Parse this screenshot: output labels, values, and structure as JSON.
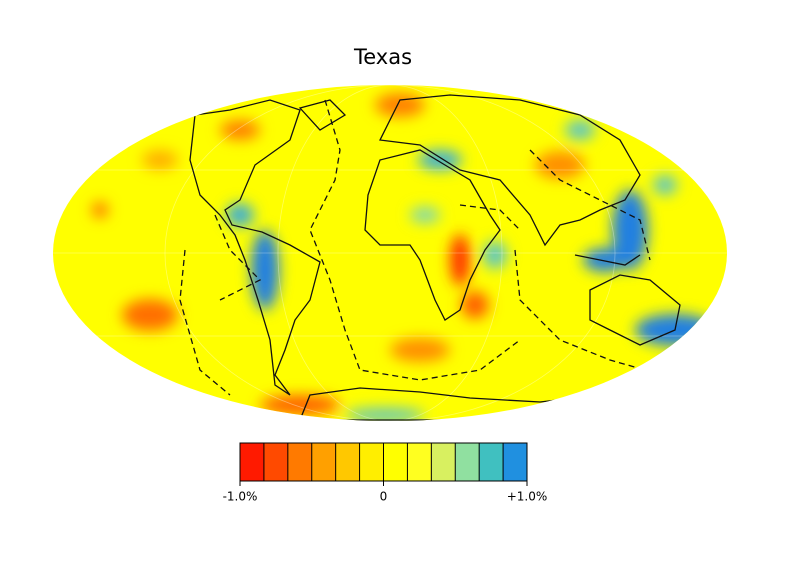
{
  "title": "Texas",
  "colorbar": {
    "range": [
      -1,
      1
    ],
    "ticks": [
      {
        "value": -1,
        "label": "-1.0%"
      },
      0,
      {
        "value": 1,
        "label": "+1.0%"
      }
    ],
    "colors": [
      "#ff1a00",
      "#ff4a00",
      "#ff7a00",
      "#ffa000",
      "#ffc800",
      "#ffee00",
      "#ffff00",
      "#ffff20",
      "#d8f060",
      "#90e0a0",
      "#40c0c0",
      "#2090e0"
    ]
  }
}
